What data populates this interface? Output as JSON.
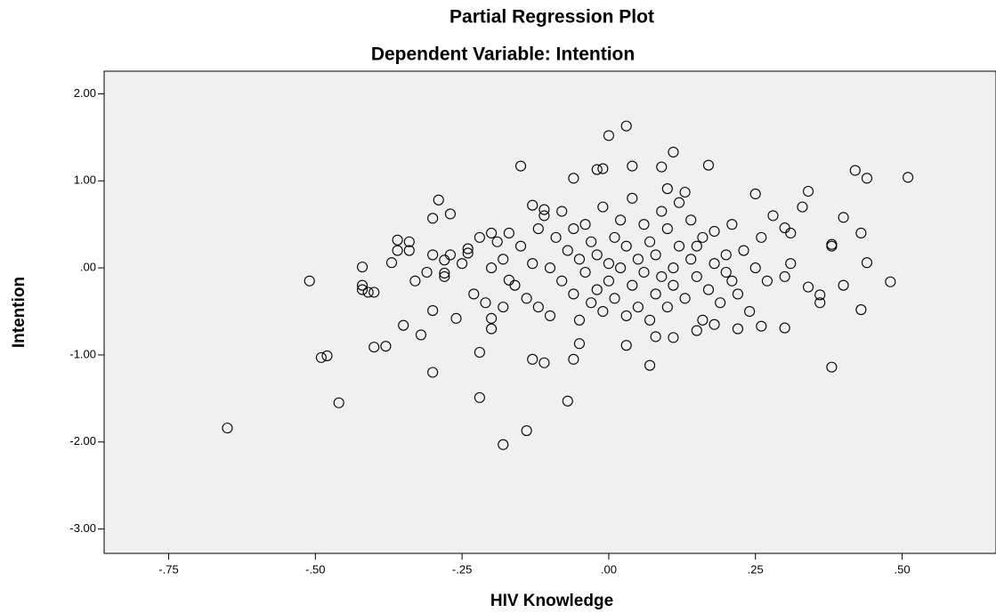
{
  "chart_data": {
    "type": "scatter",
    "title": "Partial Regression Plot",
    "subtitle": "Dependent Variable: Intention",
    "xlabel": "HIV Knowledge",
    "ylabel": "Intention",
    "color": "#000000",
    "background": "#f0f0f0",
    "xlim": [
      -0.86,
      0.66
    ],
    "ylim": [
      -3.28,
      2.26
    ],
    "xticks": [
      {
        "value": -0.75,
        "label": "-.75"
      },
      {
        "value": -0.5,
        "label": "-.50"
      },
      {
        "value": -0.25,
        "label": "-.25"
      },
      {
        "value": 0,
        "label": ".00"
      },
      {
        "value": 0.25,
        "label": ".25"
      },
      {
        "value": 0.5,
        "label": ".50"
      }
    ],
    "yticks": [
      {
        "value": 2,
        "label": "2.00"
      },
      {
        "value": 1,
        "label": "1.00"
      },
      {
        "value": 0,
        "label": ".00"
      },
      {
        "value": -1,
        "label": "-1.00"
      },
      {
        "value": -2,
        "label": "-2.00"
      },
      {
        "value": -3,
        "label": "-3.00"
      }
    ],
    "x": [
      -0.65,
      -0.51,
      -0.49,
      -0.48,
      -0.46,
      -0.42,
      -0.42,
      -0.42,
      -0.41,
      -0.4,
      -0.4,
      -0.38,
      -0.37,
      -0.36,
      -0.36,
      -0.35,
      -0.34,
      -0.34,
      -0.33,
      -0.32,
      -0.3,
      -0.3,
      -0.3,
      -0.29,
      -0.28,
      -0.28,
      -0.27,
      -0.26,
      -0.24,
      -0.24,
      -0.22,
      -0.22,
      -0.2,
      -0.2,
      -0.18,
      -0.17,
      -0.15,
      -0.14,
      -0.13,
      -0.13,
      -0.11,
      -0.11,
      -0.07,
      -0.06,
      -0.06,
      -0.05,
      -0.02,
      -0.01,
      0.0,
      0.03,
      0.04,
      0.03,
      0.07,
      0.08,
      0.09,
      0.1,
      0.11,
      0.11,
      0.13,
      0.17,
      0.25,
      0.3,
      0.31,
      0.34,
      0.34,
      0.36,
      0.38,
      0.38,
      0.4,
      0.42,
      0.44,
      0.44,
      0.43,
      0.43,
      0.48,
      0.51,
      0.3,
      0.26,
      0.18,
      0.16,
      0.15,
      0.22,
      -0.25,
      -0.22,
      -0.2,
      -0.19,
      -0.18,
      -0.17,
      -0.16,
      -0.15,
      -0.14,
      -0.13,
      -0.12,
      -0.12,
      -0.11,
      -0.1,
      -0.1,
      -0.09,
      -0.08,
      -0.08,
      -0.07,
      -0.06,
      -0.06,
      -0.05,
      -0.05,
      -0.04,
      -0.04,
      -0.03,
      -0.03,
      -0.02,
      -0.02,
      -0.01,
      -0.01,
      0.0,
      0.0,
      0.01,
      0.01,
      0.02,
      0.02,
      0.03,
      0.03,
      0.04,
      0.04,
      0.05,
      0.05,
      0.06,
      0.06,
      0.07,
      0.07,
      0.08,
      0.08,
      0.09,
      0.09,
      0.1,
      0.1,
      0.11,
      0.11,
      0.12,
      0.13,
      0.14,
      0.14,
      0.15,
      0.16,
      0.17,
      0.18,
      0.18,
      0.19,
      0.2,
      0.2,
      0.21,
      0.21,
      0.22,
      0.23,
      0.24,
      0.25,
      0.26,
      0.27,
      0.28,
      0.3,
      0.31,
      0.33,
      -0.28,
      -0.27,
      -0.3,
      -0.31,
      -0.23,
      -0.21,
      -0.2,
      -0.18,
      0.12,
      0.15,
      0.36,
      0.38,
      0.4
    ],
    "values": [
      -1.84,
      -0.15,
      -1.03,
      -1.01,
      -1.55,
      0.01,
      -0.2,
      -0.25,
      -0.28,
      -0.28,
      -0.91,
      -0.9,
      0.06,
      0.2,
      0.32,
      -0.66,
      0.2,
      0.3,
      -0.15,
      -0.77,
      -0.49,
      -1.2,
      0.57,
      0.78,
      0.09,
      -0.06,
      0.62,
      -0.58,
      0.17,
      0.22,
      -1.49,
      -0.97,
      -0.58,
      -0.7,
      -2.03,
      -0.14,
      1.17,
      -1.87,
      -1.05,
      0.72,
      -1.09,
      0.67,
      -1.53,
      1.03,
      -1.05,
      -0.87,
      1.13,
      1.14,
      1.52,
      1.63,
      1.17,
      -0.89,
      -1.12,
      -0.79,
      1.16,
      0.91,
      1.33,
      -0.8,
      0.87,
      1.18,
      0.85,
      0.46,
      0.4,
      0.88,
      -0.22,
      -0.31,
      -1.14,
      0.27,
      0.58,
      1.12,
      1.03,
      0.06,
      -0.48,
      0.4,
      -0.16,
      1.04,
      -0.69,
      -0.67,
      -0.65,
      -0.6,
      -0.72,
      -0.7,
      0.05,
      0.35,
      0.4,
      0.3,
      0.1,
      0.4,
      -0.2,
      0.25,
      -0.35,
      0.05,
      0.45,
      -0.45,
      0.6,
      0.0,
      -0.55,
      0.35,
      -0.15,
      0.65,
      0.2,
      -0.3,
      0.45,
      0.1,
      -0.6,
      0.5,
      -0.05,
      -0.4,
      0.3,
      0.15,
      -0.25,
      0.7,
      -0.5,
      0.05,
      -0.15,
      0.35,
      -0.35,
      0.55,
      0.0,
      -0.55,
      0.25,
      0.8,
      -0.2,
      0.1,
      -0.45,
      0.5,
      -0.05,
      0.3,
      -0.6,
      0.15,
      -0.3,
      0.65,
      -0.1,
      0.45,
      -0.45,
      0.0,
      -0.2,
      0.25,
      -0.35,
      0.1,
      0.55,
      -0.1,
      0.35,
      -0.25,
      0.05,
      0.42,
      -0.4,
      0.15,
      -0.05,
      0.5,
      -0.15,
      -0.3,
      0.2,
      -0.5,
      0.0,
      0.35,
      -0.15,
      0.6,
      -0.1,
      0.05,
      0.7,
      -0.1,
      0.15,
      0.15,
      -0.05,
      -0.3,
      -0.4,
      0.0,
      -0.45,
      0.75,
      0.25,
      -0.4,
      0.25,
      -0.2
    ]
  }
}
